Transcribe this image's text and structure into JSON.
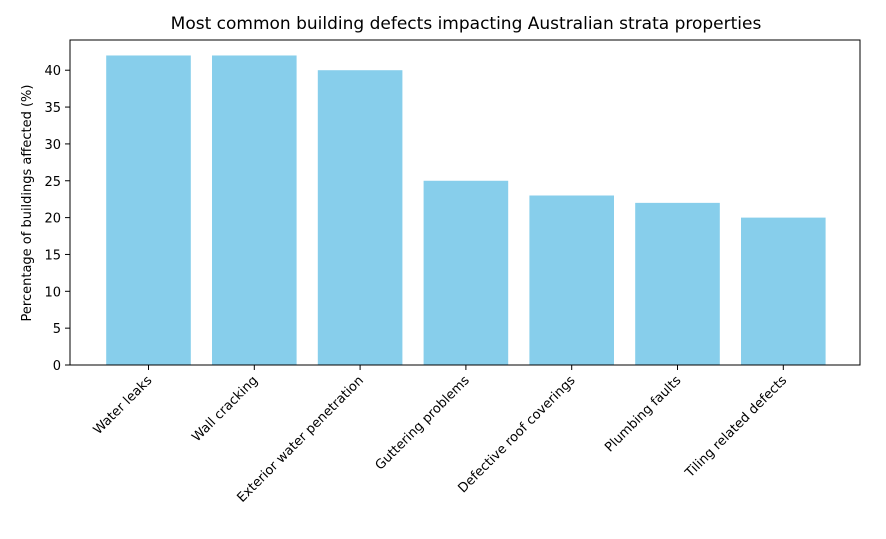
{
  "chart_data": {
    "type": "bar",
    "title": "Most common building defects impacting Australian strata properties",
    "xlabel": "",
    "ylabel": "Percentage of buildings affected (%)",
    "categories": [
      "Water leaks",
      "Wall cracking",
      "Exterior water penetration",
      "Guttering problems",
      "Defective roof coverings",
      "Plumbing faults",
      "Tiling related defects"
    ],
    "values": [
      42,
      42,
      40,
      25,
      23,
      22,
      20
    ],
    "ylim": [
      0,
      44.1
    ],
    "yticks": [
      0,
      5,
      10,
      15,
      20,
      25,
      30,
      35,
      40
    ],
    "bar_color": "#87ceeb",
    "grid": false,
    "legend": "none"
  }
}
